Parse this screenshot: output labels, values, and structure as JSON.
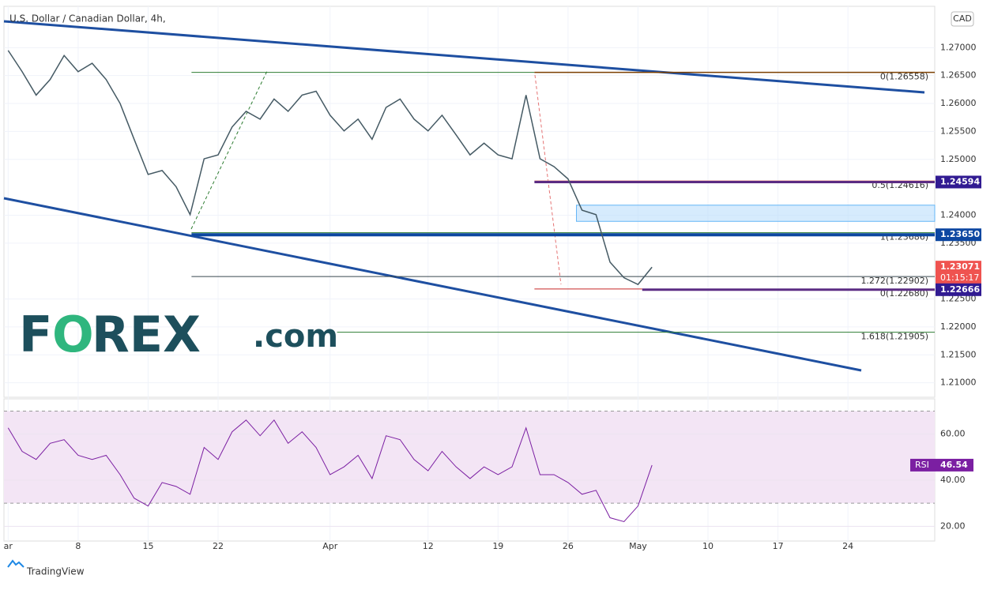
{
  "chart_data": {
    "type": "line",
    "title": "U.S. Dollar / Canadian Dollar, 4h,",
    "currency": "CAD",
    "x": [
      0,
      1,
      2,
      3,
      4,
      5,
      6,
      7,
      8,
      9,
      10,
      11,
      12,
      13,
      14,
      15,
      16,
      17,
      18,
      19,
      20,
      21,
      22,
      23,
      24,
      25,
      26,
      27,
      28,
      29,
      30,
      31,
      32,
      33,
      34,
      35,
      36,
      37,
      38,
      39,
      40,
      41,
      42,
      43,
      44,
      45,
      46
    ],
    "xlim": [
      -0.3,
      66.2
    ],
    "xticks": [
      {
        "value": 0,
        "label": "ar"
      },
      {
        "value": 5,
        "label": "8"
      },
      {
        "value": 10,
        "label": "15"
      },
      {
        "value": 15,
        "label": "22"
      },
      {
        "value": 23,
        "label": "Apr"
      },
      {
        "value": 30,
        "label": "12"
      },
      {
        "value": 35,
        "label": "19"
      },
      {
        "value": 40,
        "label": "26"
      },
      {
        "value": 45,
        "label": "May"
      },
      {
        "value": 50,
        "label": "10"
      },
      {
        "value": 55,
        "label": "17"
      },
      {
        "value": 60,
        "label": "24"
      }
    ],
    "series": [
      {
        "color": "#455a64",
        "values": [
          1.2695,
          1.2657,
          1.2615,
          1.2643,
          1.2686,
          1.2657,
          1.2672,
          1.2643,
          1.26,
          1.2536,
          1.2473,
          1.248,
          1.2451,
          1.2401,
          1.2501,
          1.2508,
          1.2558,
          1.2586,
          1.2572,
          1.2608,
          1.2586,
          1.2615,
          1.2622,
          1.2579,
          1.2551,
          1.2572,
          1.2536,
          1.2593,
          1.2608,
          1.2572,
          1.2551,
          1.2579,
          1.2544,
          1.2508,
          1.2529,
          1.2508,
          1.2501,
          1.2615,
          1.2501,
          1.2487,
          1.2465,
          1.2409,
          1.2401,
          1.2316,
          1.2288,
          1.2276,
          1.2307
        ]
      }
    ],
    "ylim": [
      1.2074,
      1.2774
    ],
    "yticks": [
      {
        "value": 1.21,
        "label": "1.21000"
      },
      {
        "value": 1.215,
        "label": "1.21500"
      },
      {
        "value": 1.22,
        "label": "1.22000"
      },
      {
        "value": 1.225,
        "label": "1.22500"
      },
      {
        "value": 1.235,
        "label": "1.23500"
      },
      {
        "value": 1.24,
        "label": "1.24000"
      },
      {
        "value": 1.25,
        "label": "1.25000"
      },
      {
        "value": 1.255,
        "label": "1.25500"
      },
      {
        "value": 1.26,
        "label": "1.26000"
      },
      {
        "value": 1.265,
        "label": "1.26500"
      },
      {
        "value": 1.27,
        "label": "1.27000"
      }
    ],
    "lines": [
      {
        "value": 1.26558,
        "from": 13.1,
        "to": 37.6,
        "color": "#2e7d32",
        "width": 1
      },
      {
        "value": 1.26558,
        "from": 37.6,
        "color": "#7b3f00",
        "width": 1.5,
        "label": "0(1.26558)"
      },
      {
        "value": 1.24616,
        "from": 37.6,
        "color": "#e6a09a",
        "width": 1,
        "label": "0.5(1.24616)"
      },
      {
        "value": 1.24594,
        "from": 37.6,
        "color": "#5b2c83",
        "width": 3
      },
      {
        "value": 1.23686,
        "from": 13.1,
        "color": "#2e7d32",
        "width": 1,
        "label": "1(1.23686)"
      },
      {
        "value": 1.2365,
        "from": 13.1,
        "color": "#0d47a1",
        "width": 4
      },
      {
        "value": 1.22902,
        "from": 13.1,
        "color": "#37474f",
        "width": 1,
        "label": "1.272(1.22902)"
      },
      {
        "value": 1.2268,
        "from": 37.6,
        "to": 45.3,
        "color": "#c62828",
        "width": 1,
        "label": "0(1.22680)"
      },
      {
        "value": 1.22666,
        "from": 45.3,
        "color": "#5b2c83",
        "width": 3
      },
      {
        "value": 1.21905,
        "from": 23.5,
        "color": "#2e7d32",
        "width": 1,
        "label": "1.618(1.21905)"
      }
    ],
    "zone": {
      "low": 1.2389,
      "high": 1.2418,
      "from": 40.6
    },
    "price_tags": [
      {
        "value": 1.24594,
        "label": "1.24594",
        "color": "#311b92"
      },
      {
        "value": 1.2365,
        "label": "1.23650",
        "color": "#0d47a1"
      },
      {
        "value": 1.23071,
        "label": "1.23071",
        "color": "#ef5350"
      },
      {
        "value": 1.22666,
        "label": "1.22666",
        "color": "#311b92"
      }
    ],
    "countdown": "01:15:17",
    "rsi": {
      "label": "RSI",
      "color": "#7b1fa2",
      "values": [
        62.7,
        52.5,
        49,
        56,
        57.6,
        50.8,
        49,
        50.8,
        42.4,
        32.2,
        28.8,
        39,
        37.3,
        33.9,
        54.2,
        49,
        61,
        66.1,
        59.3,
        66.1,
        56,
        61,
        54.2,
        42.4,
        45.8,
        50.8,
        40.7,
        59.3,
        57.6,
        49,
        44.1,
        52.5,
        45.8,
        40.7,
        45.8,
        42.4,
        45.8,
        62.7,
        42.4,
        42.4,
        39,
        33.9,
        35.6,
        23.7,
        22,
        28.8,
        46.54
      ],
      "ylim": [
        13.6,
        75.3
      ],
      "yticks": [
        {
          "value": 20,
          "label": "20.00"
        },
        {
          "value": 40,
          "label": "40.00"
        },
        {
          "value": 60,
          "label": "60.00"
        }
      ],
      "band": [
        30,
        70
      ]
    }
  },
  "logo": [
    "F",
    "O",
    "REX",
    ".com"
  ],
  "footer": "TradingView"
}
